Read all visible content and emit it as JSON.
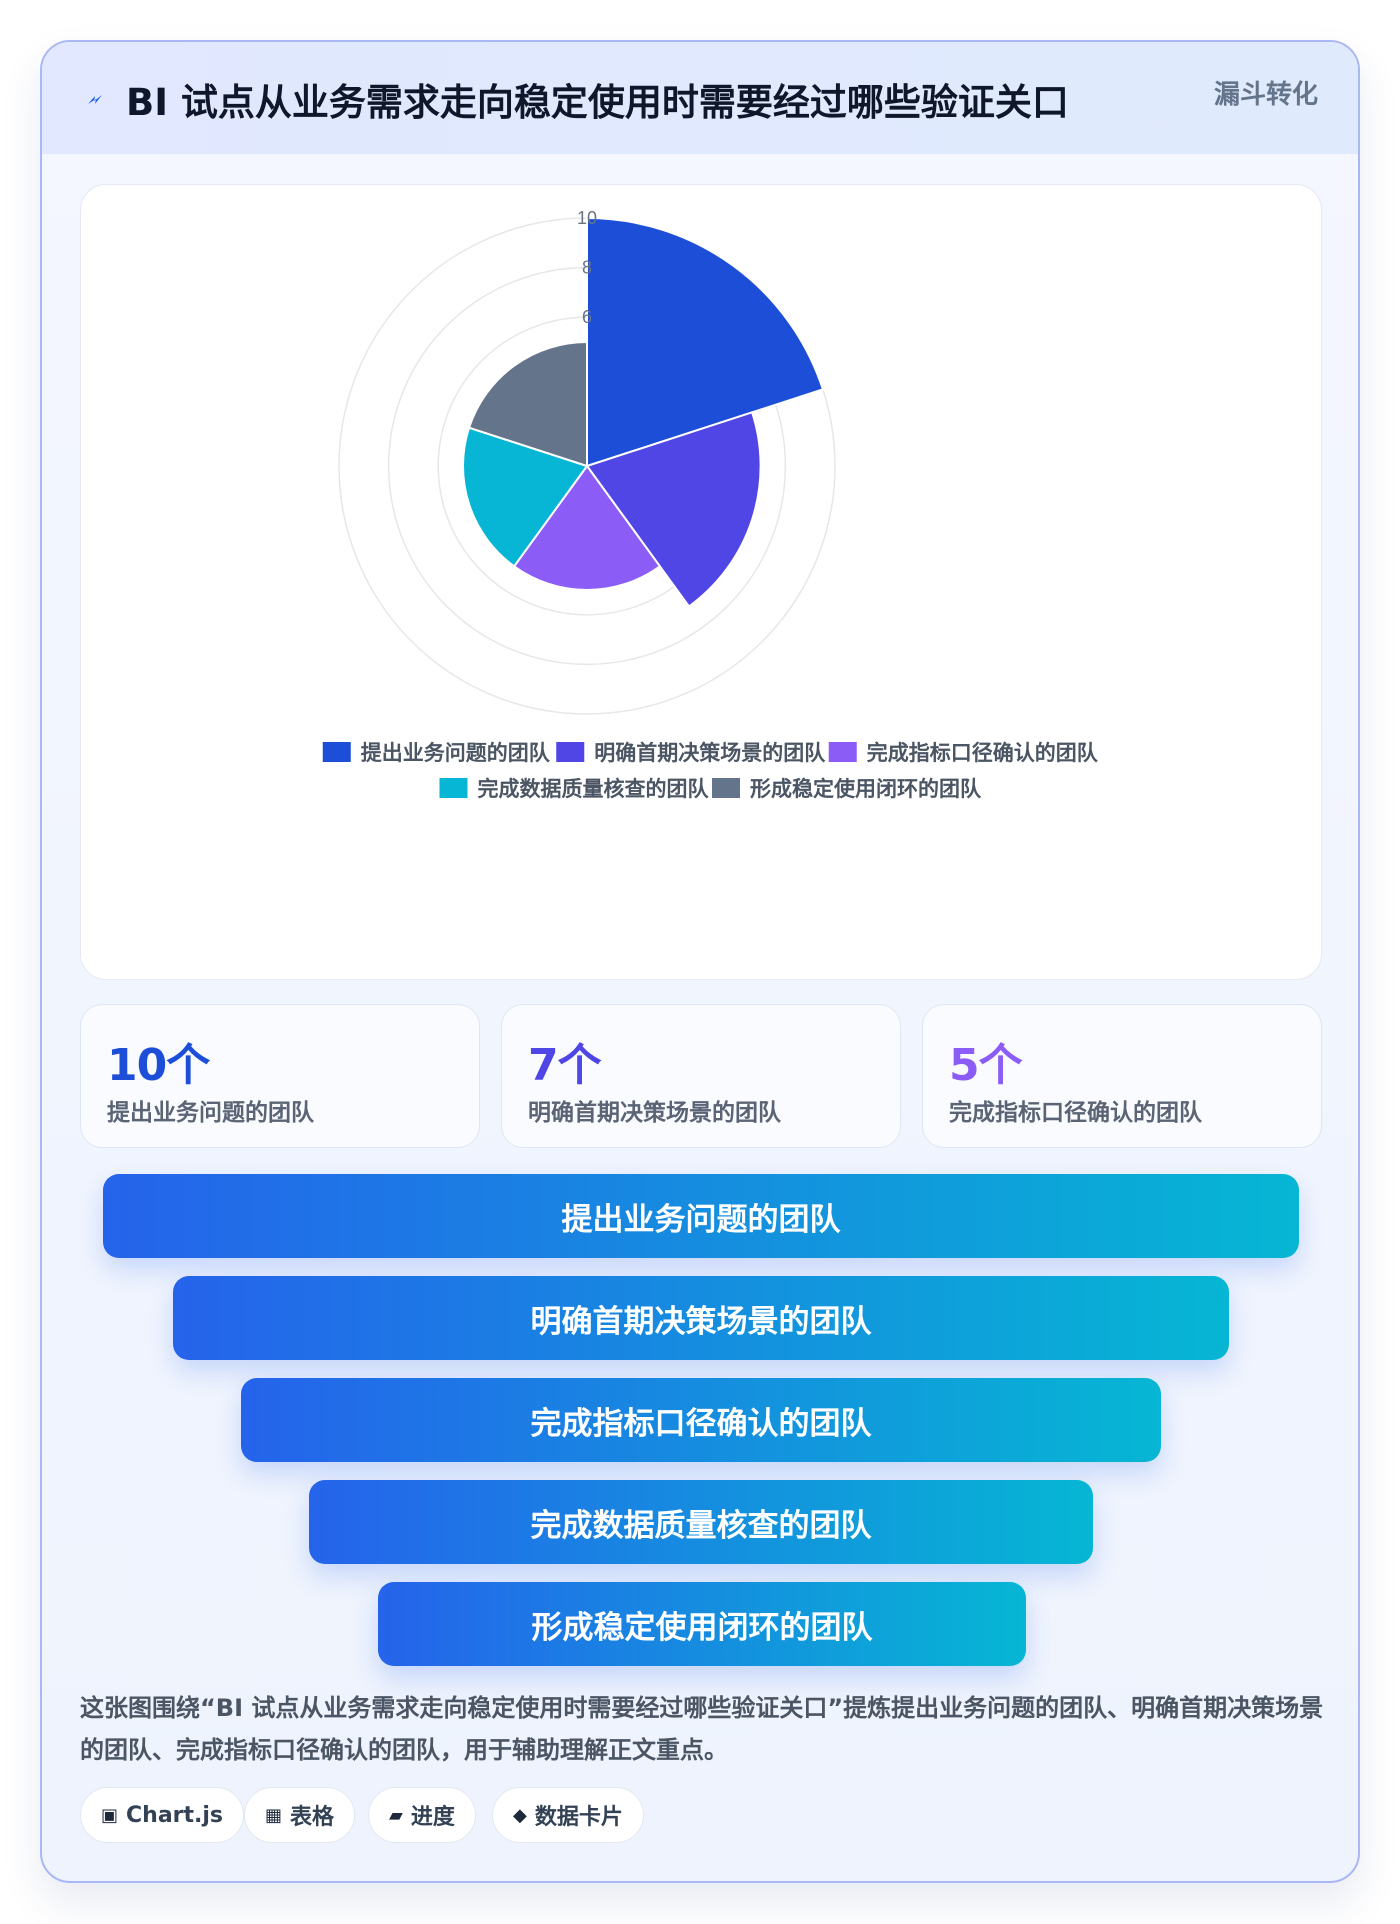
{
  "header": {
    "title": "BI 试点从业务需求走向稳定使用时需要经过哪些验证关口",
    "tag": "漏斗转化",
    "icon": "lightning-icon"
  },
  "chart_data": {
    "type": "polarArea",
    "categories": [
      "提出业务问题的团队",
      "明确首期决策场景的团队",
      "完成指标口径确认的团队",
      "完成数据质量核查的团队",
      "形成稳定使用闭环的团队"
    ],
    "values": [
      10,
      7,
      5,
      5,
      5
    ],
    "colors": [
      "#1d4ed8",
      "#4f46e5",
      "#8b5cf6",
      "#06b6d4",
      "#64748b"
    ],
    "rlim": [
      0,
      10
    ],
    "tick_labels": [
      "10",
      "8",
      "6"
    ],
    "legend_position": "bottom",
    "grid": true
  },
  "stats": [
    {
      "value": "10个",
      "label": "提出业务问题的团队",
      "color": "#1d4ed8"
    },
    {
      "value": "7个",
      "label": "明确首期决策场景的团队",
      "color": "#4f46e5"
    },
    {
      "value": "5个",
      "label": "完成指标口径确认的团队",
      "color": "#8b5cf6"
    }
  ],
  "funnel": [
    "提出业务问题的团队",
    "明确首期决策场景的团队",
    "完成指标口径确认的团队",
    "完成数据质量核查的团队",
    "形成稳定使用闭环的团队"
  ],
  "description": "这张图围绕“BI 试点从业务需求走向稳定使用时需要经过哪些验证关口”提炼提出业务问题的团队、明确首期决策场景的团队、完成指标口径确认的团队，用于辅助理解正文重点。",
  "chips": [
    {
      "icon": "▣",
      "label": "Chart.js",
      "icon_name": "chart-icon"
    },
    {
      "icon": "▦",
      "label": "表格",
      "icon_name": "table-icon"
    },
    {
      "icon": "▰",
      "label": "进度",
      "icon_name": "progress-icon"
    },
    {
      "icon": "◆",
      "label": "数据卡片",
      "icon_name": "card-icon"
    }
  ]
}
